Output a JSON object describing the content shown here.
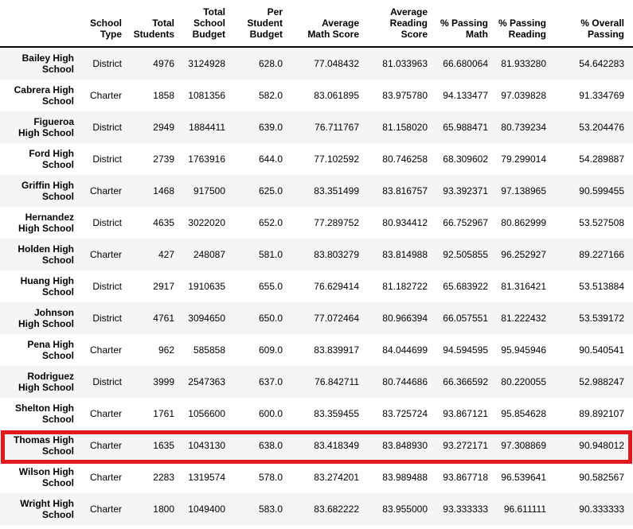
{
  "colors": {
    "background": "#ffffff",
    "stripe": "#f5f5f5",
    "text": "#000000",
    "header_border": "#000000",
    "highlight_border": "#e0191f"
  },
  "chart_data": {
    "type": "table",
    "index_label": "",
    "columns": [
      "School Type",
      "Total Students",
      "Total School Budget",
      "Per Student Budget",
      "Average Math Score",
      "Average Reading Score",
      "% Passing Math",
      "% Passing Reading",
      "% Overall Passing"
    ],
    "column_header_lines": [
      [
        "School",
        "Type"
      ],
      [
        "Total",
        "Students"
      ],
      [
        "Total",
        "School",
        "Budget"
      ],
      [
        "Per",
        "Student",
        "Budget"
      ],
      [
        "Average",
        "Math Score"
      ],
      [
        "Average",
        "Reading",
        "Score"
      ],
      [
        "% Passing",
        "Math"
      ],
      [
        "% Passing",
        "Reading"
      ],
      [
        "% Overall",
        "Passing"
      ]
    ],
    "rows": [
      {
        "school": "Bailey High School",
        "school_lines": [
          "Bailey High",
          "School"
        ],
        "values": [
          "District",
          "4976",
          "3124928",
          "628.0",
          "77.048432",
          "81.033963",
          "66.680064",
          "81.933280",
          "54.642283"
        ]
      },
      {
        "school": "Cabrera High School",
        "school_lines": [
          "Cabrera High",
          "School"
        ],
        "values": [
          "Charter",
          "1858",
          "1081356",
          "582.0",
          "83.061895",
          "83.975780",
          "94.133477",
          "97.039828",
          "91.334769"
        ]
      },
      {
        "school": "Figueroa High School",
        "school_lines": [
          "Figueroa",
          "High School"
        ],
        "values": [
          "District",
          "2949",
          "1884411",
          "639.0",
          "76.711767",
          "81.158020",
          "65.988471",
          "80.739234",
          "53.204476"
        ]
      },
      {
        "school": "Ford High School",
        "school_lines": [
          "Ford High",
          "School"
        ],
        "values": [
          "District",
          "2739",
          "1763916",
          "644.0",
          "77.102592",
          "80.746258",
          "68.309602",
          "79.299014",
          "54.289887"
        ]
      },
      {
        "school": "Griffin High School",
        "school_lines": [
          "Griffin High",
          "School"
        ],
        "values": [
          "Charter",
          "1468",
          "917500",
          "625.0",
          "83.351499",
          "83.816757",
          "93.392371",
          "97.138965",
          "90.599455"
        ]
      },
      {
        "school": "Hernandez High School",
        "school_lines": [
          "Hernandez",
          "High School"
        ],
        "values": [
          "District",
          "4635",
          "3022020",
          "652.0",
          "77.289752",
          "80.934412",
          "66.752967",
          "80.862999",
          "53.527508"
        ]
      },
      {
        "school": "Holden High School",
        "school_lines": [
          "Holden High",
          "School"
        ],
        "values": [
          "Charter",
          "427",
          "248087",
          "581.0",
          "83.803279",
          "83.814988",
          "92.505855",
          "96.252927",
          "89.227166"
        ]
      },
      {
        "school": "Huang High School",
        "school_lines": [
          "Huang High",
          "School"
        ],
        "values": [
          "District",
          "2917",
          "1910635",
          "655.0",
          "76.629414",
          "81.182722",
          "65.683922",
          "81.316421",
          "53.513884"
        ]
      },
      {
        "school": "Johnson High School",
        "school_lines": [
          "Johnson",
          "High School"
        ],
        "values": [
          "District",
          "4761",
          "3094650",
          "650.0",
          "77.072464",
          "80.966394",
          "66.057551",
          "81.222432",
          "53.539172"
        ]
      },
      {
        "school": "Pena High School",
        "school_lines": [
          "Pena High",
          "School"
        ],
        "values": [
          "Charter",
          "962",
          "585858",
          "609.0",
          "83.839917",
          "84.044699",
          "94.594595",
          "95.945946",
          "90.540541"
        ]
      },
      {
        "school": "Rodriguez High School",
        "school_lines": [
          "Rodriguez",
          "High School"
        ],
        "values": [
          "District",
          "3999",
          "2547363",
          "637.0",
          "76.842711",
          "80.744686",
          "66.366592",
          "80.220055",
          "52.988247"
        ]
      },
      {
        "school": "Shelton High School",
        "school_lines": [
          "Shelton High",
          "School"
        ],
        "values": [
          "Charter",
          "1761",
          "1056600",
          "600.0",
          "83.359455",
          "83.725724",
          "93.867121",
          "95.854628",
          "89.892107"
        ]
      },
      {
        "school": "Thomas High School",
        "school_lines": [
          "Thomas High",
          "School"
        ],
        "values": [
          "Charter",
          "1635",
          "1043130",
          "638.0",
          "83.418349",
          "83.848930",
          "93.272171",
          "97.308869",
          "90.948012"
        ]
      },
      {
        "school": "Wilson High School",
        "school_lines": [
          "Wilson High",
          "School"
        ],
        "values": [
          "Charter",
          "2283",
          "1319574",
          "578.0",
          "83.274201",
          "83.989488",
          "93.867718",
          "96.539641",
          "90.582567"
        ]
      },
      {
        "school": "Wright High School",
        "school_lines": [
          "Wright High",
          "School"
        ],
        "values": [
          "Charter",
          "1800",
          "1049400",
          "583.0",
          "83.682222",
          "83.955000",
          "93.333333",
          "96.611111",
          "90.333333"
        ]
      }
    ],
    "highlight": {
      "row": "Thomas High School",
      "color": "#e0191f"
    }
  }
}
